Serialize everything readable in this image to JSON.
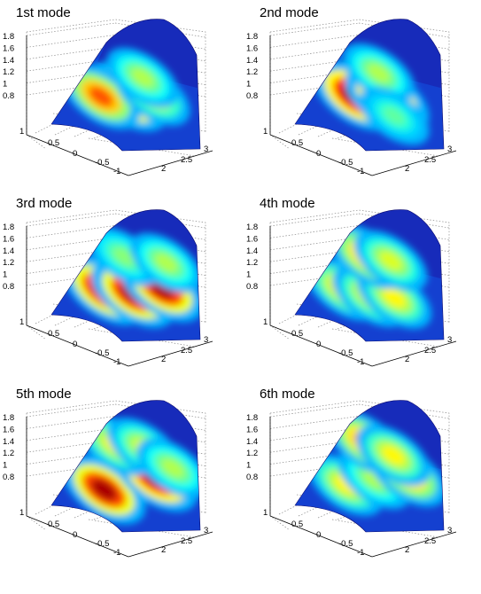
{
  "panels": [
    {
      "title": "1st mode",
      "blobs": [
        [
          0.45,
          0.5,
          0.95
        ],
        [
          0.38,
          0.25,
          0.75
        ],
        [
          0.55,
          0.75,
          0.55
        ],
        [
          0.72,
          0.55,
          0.45
        ]
      ]
    },
    {
      "title": "2nd mode",
      "blobs": [
        [
          0.42,
          0.35,
          1.0
        ],
        [
          0.48,
          0.68,
          1.0
        ],
        [
          0.75,
          0.45,
          0.45
        ],
        [
          0.3,
          0.85,
          0.35
        ]
      ]
    },
    {
      "title": "3rd mode",
      "blobs": [
        [
          0.35,
          0.3,
          0.95
        ],
        [
          0.4,
          0.6,
          0.95
        ],
        [
          0.55,
          0.85,
          0.95
        ],
        [
          0.8,
          0.3,
          0.4
        ],
        [
          0.85,
          0.75,
          0.45
        ]
      ]
    },
    {
      "title": "4th mode",
      "blobs": [
        [
          0.35,
          0.25,
          0.6
        ],
        [
          0.35,
          0.55,
          0.55
        ],
        [
          0.4,
          0.8,
          0.55
        ],
        [
          0.8,
          0.3,
          0.7
        ],
        [
          0.82,
          0.55,
          0.5
        ]
      ]
    },
    {
      "title": "5th mode",
      "blobs": [
        [
          0.25,
          0.35,
          0.95
        ],
        [
          0.55,
          0.78,
          1.0
        ],
        [
          0.8,
          0.2,
          0.55
        ],
        [
          0.85,
          0.5,
          0.5
        ],
        [
          0.7,
          0.9,
          0.45
        ]
      ]
    },
    {
      "title": "6th mode",
      "blobs": [
        [
          0.3,
          0.3,
          0.55
        ],
        [
          0.45,
          0.55,
          0.45
        ],
        [
          0.6,
          0.85,
          0.7
        ],
        [
          0.85,
          0.25,
          0.7
        ],
        [
          0.78,
          0.6,
          0.55
        ]
      ]
    }
  ],
  "z_ticks": [
    "1.8",
    "1.6",
    "1.4",
    "1.2",
    "1",
    "0.8"
  ],
  "y_ticks": [
    "1",
    "0.5",
    "0",
    "-0.5",
    "-1"
  ],
  "x_ticks": [
    "2",
    "2.5",
    "3"
  ]
}
